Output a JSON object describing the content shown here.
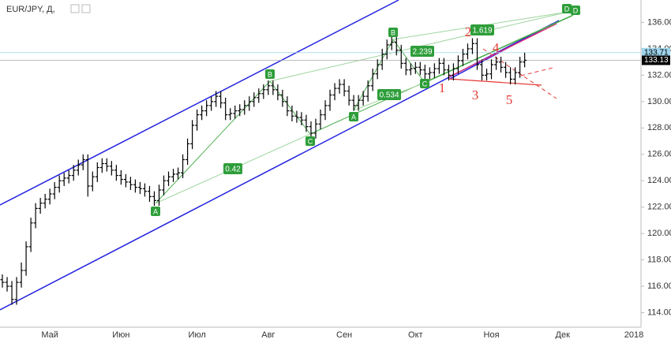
{
  "chart_data": {
    "type": "ohlc",
    "title": "EUR/JPY, Д,",
    "categories": [
      null,
      null,
      null,
      null,
      null,
      null,
      null,
      null,
      null,
      null,
      "Май",
      null,
      null,
      null,
      null,
      null,
      null,
      null,
      null,
      null,
      null,
      null,
      null,
      null,
      null,
      "Июн",
      null,
      null,
      null,
      null,
      null,
      null,
      null,
      null,
      null,
      null,
      null,
      null,
      null,
      null,
      null,
      "Июл",
      null,
      null,
      null,
      null,
      null,
      null,
      null,
      null,
      null,
      null,
      null,
      null,
      null,
      null,
      "Авг",
      null,
      null,
      null,
      null,
      null,
      null,
      null,
      null,
      null,
      null,
      null,
      null,
      null,
      null,
      null,
      "Сен",
      null,
      null,
      null,
      null,
      null,
      null,
      null,
      null,
      null,
      null,
      null,
      null,
      null,
      null,
      "Окт",
      null,
      null,
      null,
      null,
      null,
      null,
      null,
      null,
      null,
      null,
      null,
      null,
      null,
      null,
      null,
      "Ноя",
      null,
      null,
      null,
      null,
      null,
      null,
      null,
      null,
      null,
      null,
      null,
      null,
      null,
      null,
      "Дек",
      null,
      null,
      null,
      null,
      null,
      null,
      null,
      null,
      null,
      null,
      null,
      null,
      null,
      null,
      "2018",
      null
    ],
    "open": [
      116.5,
      116.3,
      116.0,
      115.0,
      116.3,
      117.2,
      119.0,
      120.8,
      121.9,
      122.3,
      122.6,
      123.0,
      123.5,
      124.0,
      124.2,
      124.4,
      124.8,
      125.2,
      125.6,
      123.6,
      124.3,
      125.0,
      125.3,
      125.1,
      124.8,
      124.4,
      124.1,
      123.9,
      123.7,
      123.5,
      123.4,
      123.2,
      122.8,
      122.5,
      123.3,
      124.0,
      124.3,
      124.5,
      124.6,
      125.6,
      126.8,
      128.2,
      129.0,
      129.3,
      129.7,
      130.0,
      130.4,
      129.9,
      129.0,
      129.1,
      129.3,
      129.4,
      129.7,
      130.0,
      130.3,
      130.6,
      130.9,
      131.2,
      130.9,
      130.5,
      130.0,
      129.3,
      128.9,
      128.8,
      128.6,
      128.1,
      127.6,
      128.3,
      129.0,
      129.7,
      130.5,
      131.0,
      131.3,
      130.8,
      130.1,
      129.7,
      130.1,
      130.4,
      131.2,
      132.1,
      132.8,
      133.6,
      134.3,
      134.5,
      133.9,
      132.9,
      132.4,
      132.5,
      132.6,
      132.4,
      132.1,
      132.2,
      132.5,
      132.9,
      132.4,
      132.0,
      132.5,
      133.1,
      133.6,
      134.0,
      134.4,
      132.8,
      132.0,
      132.1,
      132.8,
      133.0,
      132.6,
      132.2,
      131.7,
      132.2,
      133.0,
      null,
      null,
      null,
      null,
      null,
      null,
      null,
      null,
      null,
      null,
      null,
      null,
      null,
      null,
      null,
      null,
      null,
      null,
      null,
      null,
      null,
      null,
      null,
      null
    ],
    "high": [
      116.9,
      116.7,
      116.4,
      116.7,
      117.8,
      119.4,
      121.2,
      122.3,
      122.7,
      123.0,
      123.4,
      123.9,
      124.4,
      124.6,
      124.8,
      125.2,
      125.6,
      126.0,
      126.0,
      124.7,
      125.4,
      125.7,
      125.7,
      125.5,
      125.2,
      124.8,
      124.5,
      124.3,
      124.1,
      123.9,
      123.8,
      123.6,
      123.2,
      123.7,
      124.4,
      124.7,
      124.9,
      125.0,
      126.0,
      127.2,
      128.6,
      129.4,
      129.7,
      130.1,
      130.4,
      130.8,
      130.8,
      130.3,
      129.5,
      129.7,
      129.8,
      130.1,
      130.4,
      130.7,
      131.0,
      131.3,
      131.6,
      131.6,
      131.3,
      130.9,
      130.4,
      129.7,
      129.3,
      129.2,
      129.0,
      128.5,
      128.7,
      129.4,
      130.1,
      130.9,
      131.4,
      131.7,
      131.7,
      131.2,
      130.5,
      130.5,
      130.8,
      131.6,
      132.5,
      133.2,
      134.0,
      134.7,
      134.9,
      134.9,
      134.3,
      133.3,
      132.9,
      133.0,
      133.0,
      132.8,
      132.6,
      132.9,
      133.3,
      133.3,
      132.8,
      132.9,
      133.5,
      134.0,
      134.4,
      134.8,
      134.8,
      133.2,
      132.5,
      133.2,
      133.4,
      133.4,
      133.0,
      132.6,
      132.6,
      133.4,
      133.7,
      null,
      null,
      null,
      null,
      null,
      null,
      null,
      null,
      null,
      null,
      null,
      null,
      null,
      null,
      null,
      null,
      null,
      null,
      null,
      null,
      null,
      null,
      null,
      null
    ],
    "low": [
      115.9,
      115.6,
      114.6,
      114.6,
      115.9,
      116.8,
      118.6,
      120.4,
      121.5,
      121.9,
      122.2,
      122.6,
      123.1,
      123.6,
      123.8,
      124.0,
      124.4,
      124.8,
      122.8,
      123.2,
      123.9,
      124.6,
      124.7,
      124.4,
      124.0,
      123.7,
      123.5,
      123.3,
      123.1,
      123.0,
      122.8,
      122.4,
      122.1,
      122.1,
      122.9,
      123.6,
      123.9,
      124.1,
      124.2,
      125.2,
      126.4,
      127.8,
      128.6,
      128.9,
      129.3,
      129.6,
      129.5,
      128.6,
      128.6,
      128.7,
      128.9,
      129.0,
      129.3,
      129.6,
      129.9,
      130.2,
      130.5,
      130.5,
      130.1,
      129.6,
      128.9,
      128.5,
      128.4,
      128.2,
      127.7,
      127.2,
      127.2,
      127.9,
      128.6,
      129.3,
      130.1,
      130.6,
      130.4,
      129.7,
      129.3,
      129.3,
      129.7,
      130.0,
      130.8,
      131.7,
      132.4,
      133.2,
      133.9,
      133.5,
      132.5,
      132.0,
      132.0,
      132.1,
      132.0,
      131.7,
      131.7,
      131.8,
      132.1,
      132.0,
      131.6,
      131.6,
      132.1,
      132.7,
      133.2,
      133.6,
      132.4,
      131.6,
      131.6,
      131.7,
      132.4,
      132.2,
      131.8,
      131.3,
      131.3,
      131.8,
      132.6,
      null,
      null,
      null,
      null,
      null,
      null,
      null,
      null,
      null,
      null,
      null,
      null,
      null,
      null,
      null,
      null,
      null,
      null,
      null,
      null,
      null,
      null,
      null,
      null
    ],
    "close": [
      116.3,
      116.0,
      115.0,
      116.3,
      117.2,
      119.0,
      120.8,
      121.9,
      122.3,
      122.6,
      123.0,
      123.5,
      124.0,
      124.2,
      124.4,
      124.8,
      125.2,
      125.6,
      123.6,
      124.3,
      125.0,
      125.3,
      125.1,
      124.8,
      124.4,
      124.1,
      123.9,
      123.7,
      123.5,
      123.4,
      123.2,
      122.8,
      122.5,
      123.3,
      124.0,
      124.3,
      124.5,
      124.6,
      125.6,
      126.8,
      128.2,
      129.0,
      129.3,
      129.7,
      130.0,
      130.4,
      129.9,
      129.0,
      129.1,
      129.3,
      129.4,
      129.7,
      130.0,
      130.3,
      130.6,
      130.9,
      131.2,
      130.9,
      130.5,
      130.0,
      129.3,
      128.9,
      128.8,
      128.6,
      128.1,
      127.6,
      128.3,
      129.0,
      129.7,
      130.5,
      131.0,
      131.3,
      130.8,
      130.1,
      129.7,
      130.1,
      130.4,
      131.2,
      132.1,
      132.8,
      133.6,
      134.3,
      134.5,
      133.9,
      132.9,
      132.4,
      132.5,
      132.6,
      132.4,
      132.1,
      132.2,
      132.5,
      132.9,
      132.4,
      132.0,
      132.5,
      133.1,
      133.6,
      134.0,
      134.4,
      132.8,
      132.0,
      132.1,
      132.8,
      133.0,
      132.6,
      132.2,
      131.7,
      132.2,
      133.0,
      133.13,
      null,
      null,
      null,
      null,
      null,
      null,
      null,
      null,
      null,
      null,
      null,
      null,
      null,
      null,
      null,
      null,
      null,
      null,
      null,
      null,
      null,
      null,
      null,
      null
    ],
    "color": "#000000",
    "ylim": [
      112.9,
      137.7
    ],
    "yticks": [
      {
        "value": 114,
        "label": "114.00"
      },
      {
        "value": 116,
        "label": "116.00"
      },
      {
        "value": 118,
        "label": "118.00"
      },
      {
        "value": 120,
        "label": "120.00"
      },
      {
        "value": 122,
        "label": "122.00"
      },
      {
        "value": 124,
        "label": "124.00"
      },
      {
        "value": 126,
        "label": "126.00"
      },
      {
        "value": 128,
        "label": "128.00"
      },
      {
        "value": 130,
        "label": "130.00"
      },
      {
        "value": 132,
        "label": "132.00"
      },
      {
        "value": 134,
        "label": "134.00"
      },
      {
        "value": 136,
        "label": "136.00"
      }
    ],
    "price_lines": [
      {
        "value": 133.71,
        "label": "133.71",
        "color": "#9fd4ec"
      },
      {
        "value": 133.13,
        "label": "133.13",
        "color": "#000000"
      }
    ],
    "pattern_labels": [
      "A",
      "B",
      "C",
      "D",
      "A",
      "B",
      "C",
      "D"
    ],
    "ratios": [
      "0.42",
      "2.239",
      "0.534",
      "1.619"
    ],
    "wave_labels": [
      "1",
      "2",
      "3",
      "4",
      "5"
    ],
    "grid": false
  }
}
